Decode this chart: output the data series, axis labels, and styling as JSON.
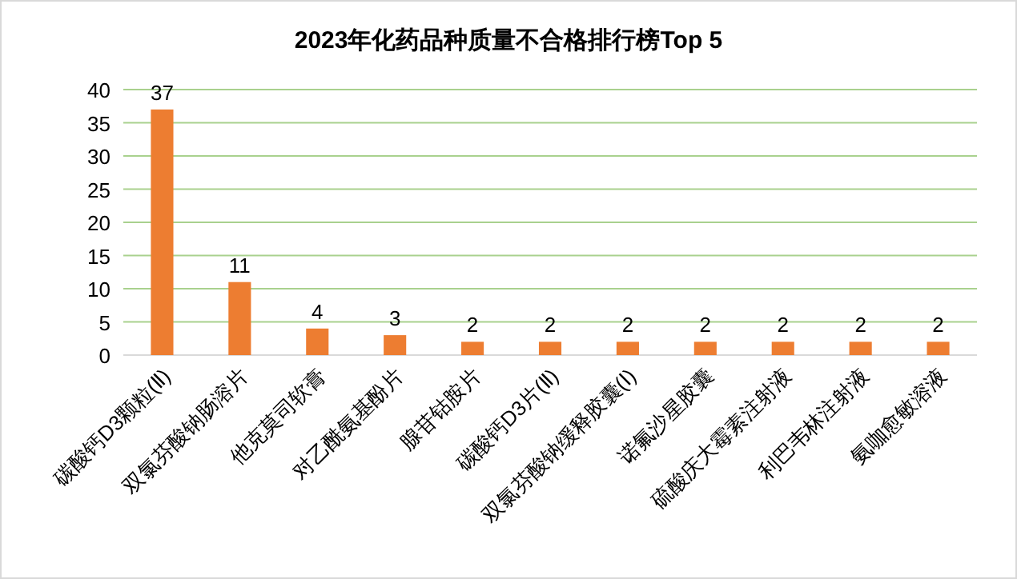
{
  "chart_data": {
    "type": "bar",
    "title": "2023年化药品种质量不合格排行榜Top 5",
    "categories": [
      "碳酸钙D3颗粒(Ⅱ)",
      "双氯芬酸钠肠溶片",
      "他克莫司软膏",
      "对乙酰氨基酚片",
      "腺苷钴胺片",
      "碳酸钙D3片(Ⅱ)",
      "双氯芬酸钠缓释胶囊(Ⅰ)",
      "诺氟沙星胶囊",
      "硫酸庆大霉素注射液",
      "利巴韦林注射液",
      "氨咖愈敏溶液"
    ],
    "values": [
      37,
      11,
      4,
      3,
      2,
      2,
      2,
      2,
      2,
      2,
      2
    ],
    "color": "#ed7d31",
    "ylim": [
      0,
      40
    ],
    "yticks": [
      0,
      5,
      10,
      15,
      20,
      25,
      30,
      35,
      40
    ],
    "grid": "y",
    "data_labels": true
  }
}
